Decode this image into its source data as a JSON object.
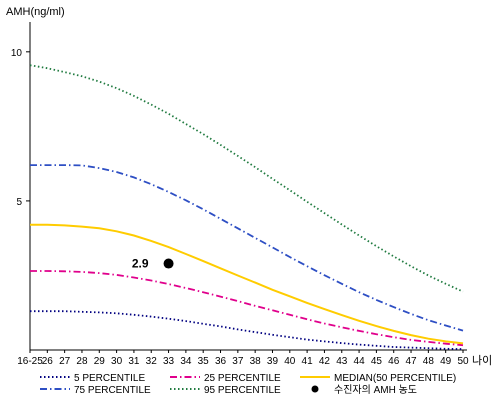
{
  "chart_data": {
    "type": "line",
    "title": "",
    "ylabel": "AMH(ng/ml)",
    "xlabel": "나이",
    "ylim": [
      0,
      11
    ],
    "yticks": [
      5,
      10
    ],
    "grid": false,
    "legend_position": "bottom",
    "categories": [
      "16-25",
      "26",
      "27",
      "28",
      "29",
      "30",
      "31",
      "32",
      "33",
      "34",
      "35",
      "36",
      "37",
      "38",
      "39",
      "40",
      "41",
      "42",
      "43",
      "44",
      "45",
      "46",
      "47",
      "48",
      "49",
      "50"
    ],
    "series": [
      {
        "name": "5 PERCENTILE",
        "color": "#000080",
        "dash": "dotted",
        "values": [
          1.3,
          1.3,
          1.3,
          1.28,
          1.26,
          1.23,
          1.18,
          1.12,
          1.05,
          0.97,
          0.88,
          0.79,
          0.69,
          0.6,
          0.51,
          0.43,
          0.35,
          0.29,
          0.23,
          0.18,
          0.14,
          0.1,
          0.08,
          0.06,
          0.04,
          0.03
        ]
      },
      {
        "name": "25 PERCENTILE",
        "color": "#e0008c",
        "dash": "dashdot",
        "values": [
          2.65,
          2.65,
          2.64,
          2.62,
          2.58,
          2.52,
          2.43,
          2.33,
          2.21,
          2.08,
          1.94,
          1.79,
          1.64,
          1.48,
          1.33,
          1.18,
          1.03,
          0.89,
          0.76,
          0.64,
          0.53,
          0.43,
          0.34,
          0.27,
          0.21,
          0.16
        ]
      },
      {
        "name": "MEDIAN(50 PERCENTILE)",
        "color": "#ffcc00",
        "dash": "solid",
        "values": [
          4.2,
          4.2,
          4.18,
          4.14,
          4.08,
          3.98,
          3.84,
          3.66,
          3.45,
          3.22,
          2.98,
          2.74,
          2.5,
          2.26,
          2.02,
          1.8,
          1.58,
          1.37,
          1.17,
          0.98,
          0.8,
          0.64,
          0.5,
          0.38,
          0.29,
          0.22
        ]
      },
      {
        "name": "75 PERCENTILE",
        "color": "#2e4fc4",
        "dash": "dashdot",
        "values": [
          6.2,
          6.2,
          6.2,
          6.19,
          6.1,
          5.97,
          5.79,
          5.56,
          5.3,
          5.02,
          4.72,
          4.4,
          4.08,
          3.76,
          3.44,
          3.12,
          2.81,
          2.51,
          2.22,
          1.94,
          1.68,
          1.44,
          1.21,
          1.0,
          0.82,
          0.65
        ]
      },
      {
        "name": "95 PERCENTILE",
        "color": "#1f7a3f",
        "dash": "dotted",
        "values": [
          9.55,
          9.45,
          9.32,
          9.18,
          9.0,
          8.78,
          8.52,
          8.23,
          7.92,
          7.58,
          7.24,
          6.88,
          6.51,
          6.13,
          5.74,
          5.36,
          4.97,
          4.59,
          4.21,
          3.84,
          3.48,
          3.14,
          2.81,
          2.5,
          2.22,
          1.96
        ]
      }
    ],
    "marker": {
      "name": "수진자의 AMH 농도",
      "x": "33",
      "y": 2.9,
      "label": "2.9",
      "color": "#000000"
    }
  }
}
